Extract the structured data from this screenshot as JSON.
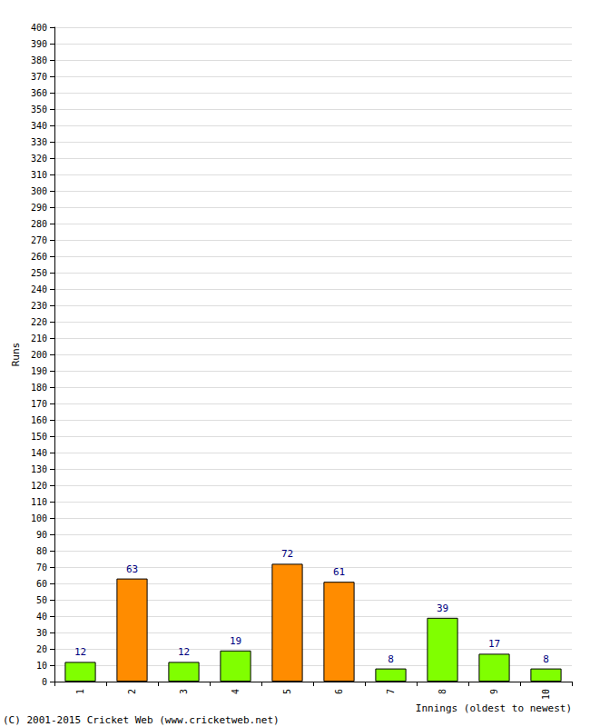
{
  "chart_data": {
    "type": "bar",
    "x_label": "Innings (oldest to newest)",
    "y_label": "Runs",
    "categories": [
      "1",
      "2",
      "3",
      "4",
      "5",
      "6",
      "7",
      "8",
      "9",
      "10"
    ],
    "values": [
      12,
      63,
      12,
      19,
      72,
      61,
      8,
      39,
      17,
      8
    ],
    "colors": [
      "#80ff00",
      "#ff8c00",
      "#80ff00",
      "#80ff00",
      "#ff8c00",
      "#ff8c00",
      "#80ff00",
      "#80ff00",
      "#80ff00",
      "#80ff00"
    ],
    "ylim": [
      0,
      400
    ],
    "yticks": [
      0,
      10,
      20,
      30,
      40,
      50,
      60,
      70,
      80,
      90,
      100,
      110,
      120,
      130,
      140,
      150,
      160,
      170,
      180,
      190,
      200,
      210,
      220,
      230,
      240,
      250,
      260,
      270,
      280,
      290,
      300,
      310,
      320,
      330,
      340,
      350,
      360,
      370,
      380,
      390,
      400
    ],
    "grid": true,
    "data_labels": true,
    "annotations": [
      "(C) 2001-2015 Cricket Web (www.cricketweb.net)"
    ]
  }
}
